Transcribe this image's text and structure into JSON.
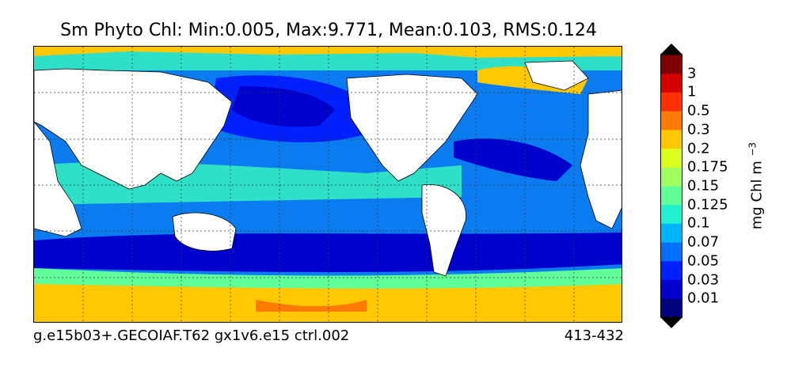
{
  "title": "Sm Phyto Chl: Min:0.005, Max:9.771, Mean:0.103, RMS:0.124",
  "footer": {
    "left": "g.e15b03+.GECOIAF.T62 gx1v6.e15 ctrl.002",
    "right": "413-432"
  },
  "colorbar": {
    "unit_text": "mg Chl m",
    "unit_exp": "−3",
    "levels": [
      "0.01",
      "0.03",
      "0.05",
      "0.07",
      "0.1",
      "0.125",
      "0.15",
      "0.175",
      "0.2",
      "0.3",
      "0.5",
      "1",
      "3"
    ],
    "colors": [
      "#00007f",
      "#0000cc",
      "#0020ff",
      "#0070ff",
      "#00b4ff",
      "#1ef0d0",
      "#60ff9a",
      "#a0ff5c",
      "#dcff1e",
      "#ffc800",
      "#ff7a00",
      "#ff3000",
      "#d40000",
      "#7f0000"
    ]
  },
  "map": {
    "land_color": "#ffffff",
    "projection": "cylindrical",
    "graticule": "dashed"
  }
}
